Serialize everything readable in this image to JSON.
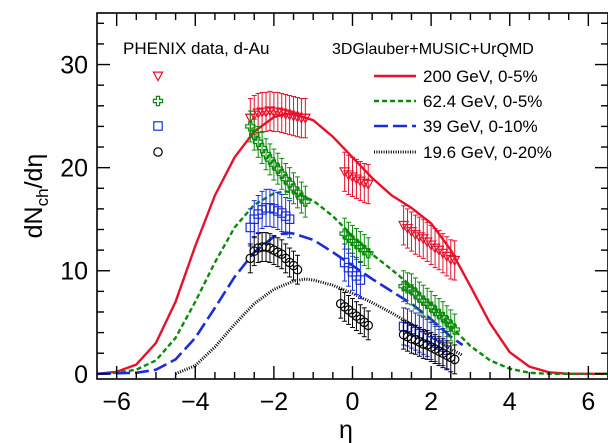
{
  "chart_data": {
    "type": "line",
    "title": "",
    "xlabel": "η",
    "ylabel": {
      "main": "dN",
      "sub": "ch",
      "tail": "/dη"
    },
    "xlim": [
      -6.5,
      6.5
    ],
    "ylim": [
      -0.5,
      35
    ],
    "xticks": [
      -6,
      -4,
      -2,
      0,
      2,
      4,
      6
    ],
    "xtick_labels": [
      "−6",
      "−4",
      "−2",
      "0",
      "2",
      "4",
      "6"
    ],
    "yticks": [
      0,
      10,
      20,
      30
    ],
    "ytick_labels": [
      "0",
      "10",
      "20",
      "30"
    ],
    "legend_left_title": "PHENIX data, d-Au",
    "legend_right_title": "3DGlauber+MUSIC+UrQMD",
    "series": [
      {
        "name": "200 GeV, 0-5%",
        "color": "#e8102b",
        "dash": "",
        "width": 2.4,
        "marker": "triangle-down",
        "curve": [
          [
            -6.5,
            0
          ],
          [
            -6.0,
            0.2
          ],
          [
            -5.5,
            0.9
          ],
          [
            -5.0,
            3.0
          ],
          [
            -4.5,
            7.0
          ],
          [
            -4.0,
            12.4
          ],
          [
            -3.5,
            17.3
          ],
          [
            -3.0,
            21.0
          ],
          [
            -2.5,
            23.5
          ],
          [
            -2.0,
            24.9
          ],
          [
            -1.7,
            25.2
          ],
          [
            -1.5,
            25.2
          ],
          [
            -1.0,
            24.6
          ],
          [
            -0.5,
            23.0
          ],
          [
            0.0,
            21.0
          ],
          [
            0.5,
            19.0
          ],
          [
            1.0,
            17.3
          ],
          [
            1.5,
            16.1
          ],
          [
            2.0,
            14.6
          ],
          [
            2.5,
            12.0
          ],
          [
            3.0,
            8.5
          ],
          [
            3.5,
            4.9
          ],
          [
            4.0,
            2.1
          ],
          [
            4.5,
            0.7
          ],
          [
            5.0,
            0.15
          ],
          [
            5.5,
            0
          ],
          [
            6.5,
            0
          ]
        ],
        "points": [
          [
            -2.6,
            24.8
          ],
          [
            -2.5,
            25.1
          ],
          [
            -2.4,
            25.3
          ],
          [
            -2.3,
            25.4
          ],
          [
            -2.2,
            25.4
          ],
          [
            -2.1,
            25.5
          ],
          [
            -2.0,
            25.4
          ],
          [
            -1.9,
            25.4
          ],
          [
            -1.8,
            25.3
          ],
          [
            -1.7,
            25.2
          ],
          [
            -1.6,
            25.1
          ],
          [
            -1.5,
            25.0
          ],
          [
            -1.4,
            24.9
          ],
          [
            -1.3,
            24.8
          ],
          [
            -1.2,
            24.8
          ],
          [
            -0.2,
            19.6
          ],
          [
            -0.1,
            19.3
          ],
          [
            0.0,
            19.1
          ],
          [
            0.1,
            18.9
          ],
          [
            0.2,
            18.7
          ],
          [
            0.3,
            18.5
          ],
          [
            0.4,
            18.4
          ],
          [
            1.3,
            14.4
          ],
          [
            1.4,
            14.1
          ],
          [
            1.5,
            13.8
          ],
          [
            1.6,
            13.5
          ],
          [
            1.7,
            13.3
          ],
          [
            1.8,
            13.1
          ],
          [
            1.9,
            12.8
          ],
          [
            2.0,
            12.5
          ],
          [
            2.1,
            12.2
          ],
          [
            2.2,
            12.0
          ],
          [
            2.3,
            11.7
          ],
          [
            2.4,
            11.4
          ],
          [
            2.5,
            11.1
          ],
          [
            2.6,
            11.0
          ]
        ],
        "err": 1.9
      },
      {
        "name": "62.4 GeV, 0-5%",
        "color": "#0b8a0b",
        "dash": "5,3",
        "width": 2.4,
        "marker": "cross",
        "curve": [
          [
            -6.5,
            0
          ],
          [
            -6.0,
            0.1
          ],
          [
            -5.5,
            0.4
          ],
          [
            -5.0,
            1.3
          ],
          [
            -4.5,
            3.5
          ],
          [
            -4.0,
            7.0
          ],
          [
            -3.5,
            10.8
          ],
          [
            -3.0,
            14.2
          ],
          [
            -2.5,
            16.4
          ],
          [
            -2.0,
            17.5
          ],
          [
            -1.7,
            17.7
          ],
          [
            -1.5,
            17.6
          ],
          [
            -1.0,
            16.8
          ],
          [
            -0.5,
            15.3
          ],
          [
            0.0,
            13.4
          ],
          [
            0.5,
            11.6
          ],
          [
            1.0,
            10.1
          ],
          [
            1.5,
            8.5
          ],
          [
            2.0,
            6.7
          ],
          [
            2.5,
            4.6
          ],
          [
            3.0,
            2.7
          ],
          [
            3.5,
            1.3
          ],
          [
            4.0,
            0.5
          ],
          [
            4.5,
            0.1
          ],
          [
            5.0,
            0
          ],
          [
            6.5,
            0
          ]
        ],
        "points": [
          [
            -2.6,
            24.0
          ],
          [
            -2.5,
            23.2
          ],
          [
            -2.4,
            22.5
          ],
          [
            -2.3,
            21.9
          ],
          [
            -2.2,
            21.3
          ],
          [
            -2.1,
            20.8
          ],
          [
            -2.0,
            20.3
          ],
          [
            -1.9,
            19.9
          ],
          [
            -1.8,
            19.4
          ],
          [
            -1.7,
            18.9
          ],
          [
            -1.6,
            18.5
          ],
          [
            -1.5,
            18.0
          ],
          [
            -1.4,
            17.6
          ],
          [
            -1.3,
            17.1
          ],
          [
            -1.2,
            16.7
          ],
          [
            -0.2,
            13.6
          ],
          [
            -0.1,
            13.2
          ],
          [
            0.0,
            12.9
          ],
          [
            0.1,
            12.6
          ],
          [
            0.2,
            12.3
          ],
          [
            0.3,
            12.0
          ],
          [
            0.4,
            11.7
          ],
          [
            1.3,
            8.5
          ],
          [
            1.4,
            8.3
          ],
          [
            1.5,
            8.2
          ],
          [
            1.6,
            7.8
          ],
          [
            1.7,
            7.4
          ],
          [
            1.8,
            7.1
          ],
          [
            1.9,
            6.8
          ],
          [
            2.0,
            6.5
          ],
          [
            2.1,
            6.1
          ],
          [
            2.2,
            5.8
          ],
          [
            2.3,
            5.5
          ],
          [
            2.4,
            5.1
          ],
          [
            2.5,
            4.7
          ],
          [
            2.6,
            4.3
          ]
        ],
        "err": 1.5
      },
      {
        "name": "39 GeV, 0-10%",
        "color": "#1a2ed6",
        "dash": "14,5",
        "width": 2.6,
        "marker": "square",
        "curve": [
          [
            -6.5,
            0
          ],
          [
            -5.5,
            0.1
          ],
          [
            -5.0,
            0.4
          ],
          [
            -4.5,
            1.4
          ],
          [
            -4.0,
            3.5
          ],
          [
            -3.5,
            6.4
          ],
          [
            -3.0,
            9.4
          ],
          [
            -2.5,
            11.8
          ],
          [
            -2.0,
            13.3
          ],
          [
            -1.7,
            13.7
          ],
          [
            -1.5,
            13.6
          ],
          [
            -1.0,
            13.0
          ],
          [
            -0.5,
            11.8
          ],
          [
            0.0,
            10.5
          ],
          [
            0.5,
            9.2
          ],
          [
            1.0,
            8.0
          ],
          [
            1.5,
            6.8
          ],
          [
            2.0,
            5.3
          ],
          [
            2.5,
            3.6
          ],
          [
            2.8,
            2.8
          ]
        ],
        "points": [
          [
            -2.6,
            14.2
          ],
          [
            -2.5,
            15.0
          ],
          [
            -2.4,
            15.5
          ],
          [
            -2.3,
            15.9
          ],
          [
            -2.2,
            16.1
          ],
          [
            -2.1,
            16.1
          ],
          [
            -2.0,
            16.0
          ],
          [
            -1.9,
            15.8
          ],
          [
            -1.8,
            15.6
          ],
          [
            -1.7,
            15.3
          ],
          [
            -1.6,
            15.0
          ],
          [
            -0.2,
            10.8
          ],
          [
            -0.1,
            10.3
          ],
          [
            0.0,
            9.9
          ],
          [
            0.1,
            9.5
          ],
          [
            0.2,
            9.1
          ],
          [
            1.3,
            4.6
          ],
          [
            1.4,
            4.5
          ],
          [
            1.5,
            4.3
          ],
          [
            1.6,
            4.1
          ],
          [
            1.7,
            3.9
          ],
          [
            1.8,
            3.7
          ],
          [
            1.9,
            3.5
          ],
          [
            2.0,
            3.2
          ],
          [
            2.1,
            3.0
          ],
          [
            2.2,
            2.8
          ],
          [
            2.3,
            2.6
          ],
          [
            2.4,
            2.3
          ]
        ],
        "err": 1.8
      },
      {
        "name": "19.6 GeV, 0-20%",
        "color": "#000000",
        "dash": "1,1.4",
        "width": 3,
        "marker": "circle",
        "curve": [
          [
            -4.5,
            0
          ],
          [
            -4.0,
            0.8
          ],
          [
            -3.5,
            2.6
          ],
          [
            -3.0,
            4.8
          ],
          [
            -2.5,
            6.8
          ],
          [
            -2.0,
            8.2
          ],
          [
            -1.5,
            9.0
          ],
          [
            -1.2,
            9.2
          ],
          [
            -1.0,
            9.1
          ],
          [
            -0.5,
            8.6
          ],
          [
            0.0,
            7.8
          ],
          [
            0.5,
            6.9
          ],
          [
            1.0,
            5.9
          ],
          [
            1.5,
            4.8
          ],
          [
            2.0,
            3.6
          ],
          [
            2.5,
            2.4
          ],
          [
            2.8,
            1.8
          ]
        ],
        "points": [
          [
            -2.6,
            11.2
          ],
          [
            -2.5,
            11.9
          ],
          [
            -2.4,
            12.2
          ],
          [
            -2.3,
            12.3
          ],
          [
            -2.2,
            12.3
          ],
          [
            -2.1,
            12.2
          ],
          [
            -2.0,
            12.0
          ],
          [
            -1.9,
            11.8
          ],
          [
            -1.8,
            11.6
          ],
          [
            -1.7,
            11.2
          ],
          [
            -1.6,
            10.8
          ],
          [
            -1.5,
            10.5
          ],
          [
            -1.4,
            10.1
          ],
          [
            -0.3,
            6.8
          ],
          [
            -0.2,
            6.5
          ],
          [
            -0.1,
            6.2
          ],
          [
            0.0,
            5.9
          ],
          [
            0.1,
            5.6
          ],
          [
            0.2,
            5.3
          ],
          [
            0.3,
            5.0
          ],
          [
            0.4,
            4.7
          ],
          [
            1.3,
            3.8
          ],
          [
            1.4,
            3.6
          ],
          [
            1.5,
            3.4
          ],
          [
            1.6,
            3.3
          ],
          [
            1.7,
            3.1
          ],
          [
            1.8,
            2.9
          ],
          [
            1.9,
            2.8
          ],
          [
            2.0,
            2.6
          ],
          [
            2.1,
            2.4
          ],
          [
            2.2,
            2.2
          ],
          [
            2.3,
            2.0
          ],
          [
            2.4,
            1.8
          ],
          [
            2.5,
            1.6
          ],
          [
            2.6,
            1.4
          ]
        ],
        "err": 1.4
      }
    ],
    "grid": false,
    "legend_position": "top"
  }
}
